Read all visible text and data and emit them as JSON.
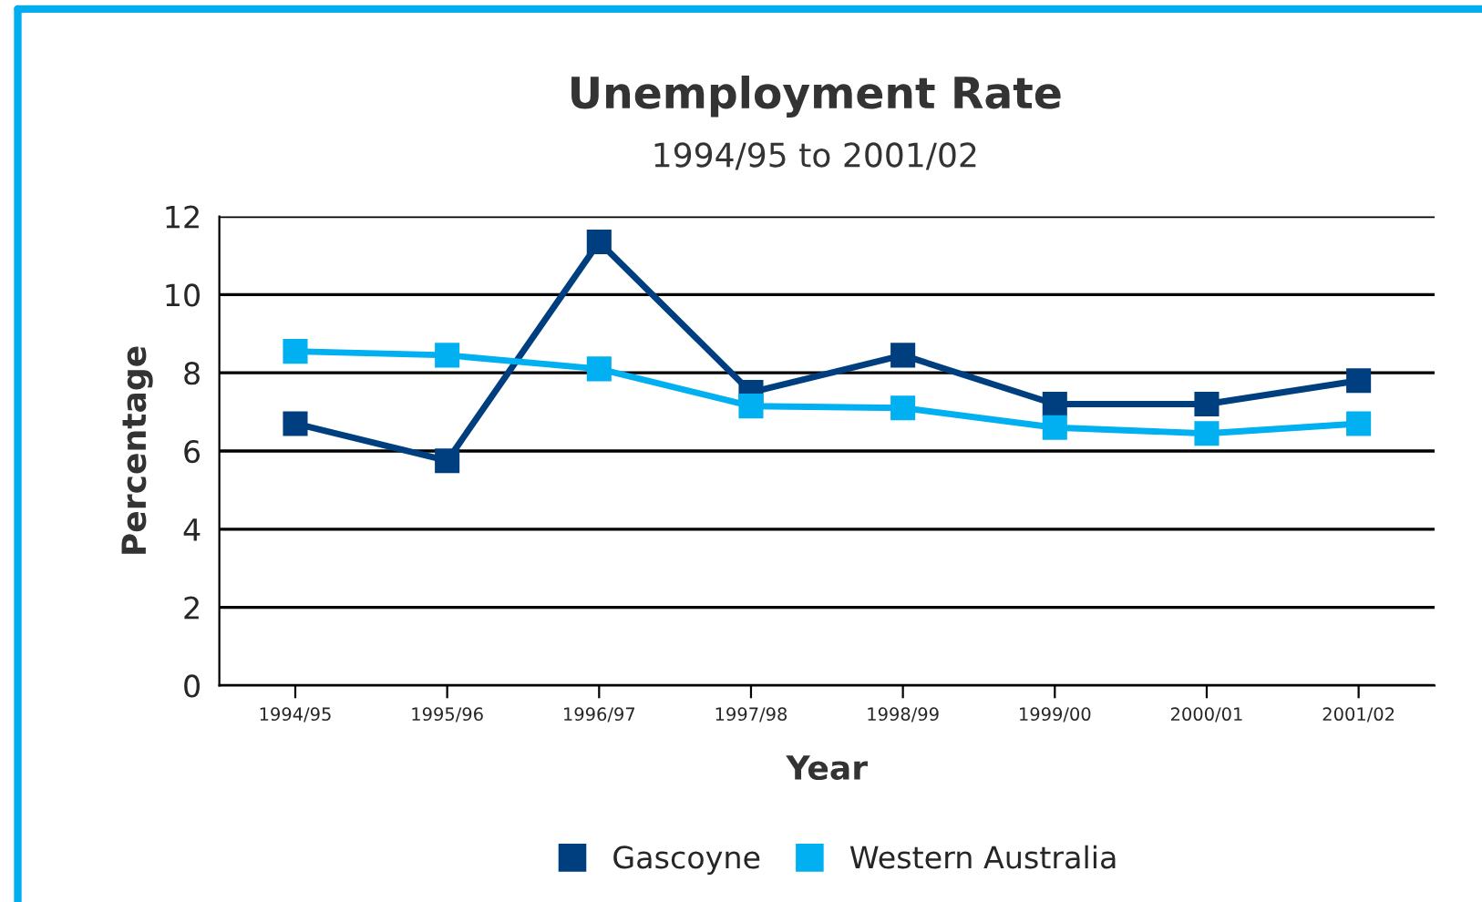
{
  "chart_data": {
    "type": "line",
    "title": "Unemployment Rate",
    "subtitle": "1994/95 to 2001/02",
    "xlabel": "Year",
    "ylabel": "Percentage",
    "categories": [
      "1994/95",
      "1995/96",
      "1996/97",
      "1997/98",
      "1998/99",
      "1999/00",
      "2000/01",
      "2001/02"
    ],
    "series": [
      {
        "name": "Gascoyne",
        "color": "#003f7f",
        "values": [
          6.7,
          5.75,
          11.35,
          7.5,
          8.45,
          7.2,
          7.2,
          7.8
        ]
      },
      {
        "name": "Western Australia",
        "color": "#00b0f0",
        "values": [
          8.55,
          8.45,
          8.1,
          7.15,
          7.1,
          6.6,
          6.45,
          6.7
        ]
      }
    ],
    "ylim": [
      0,
      12
    ],
    "yticks": [
      0,
      2,
      4,
      6,
      8,
      10,
      12
    ],
    "grid": "y",
    "legend": "bottom",
    "marker": "square",
    "line_style": "solid"
  }
}
